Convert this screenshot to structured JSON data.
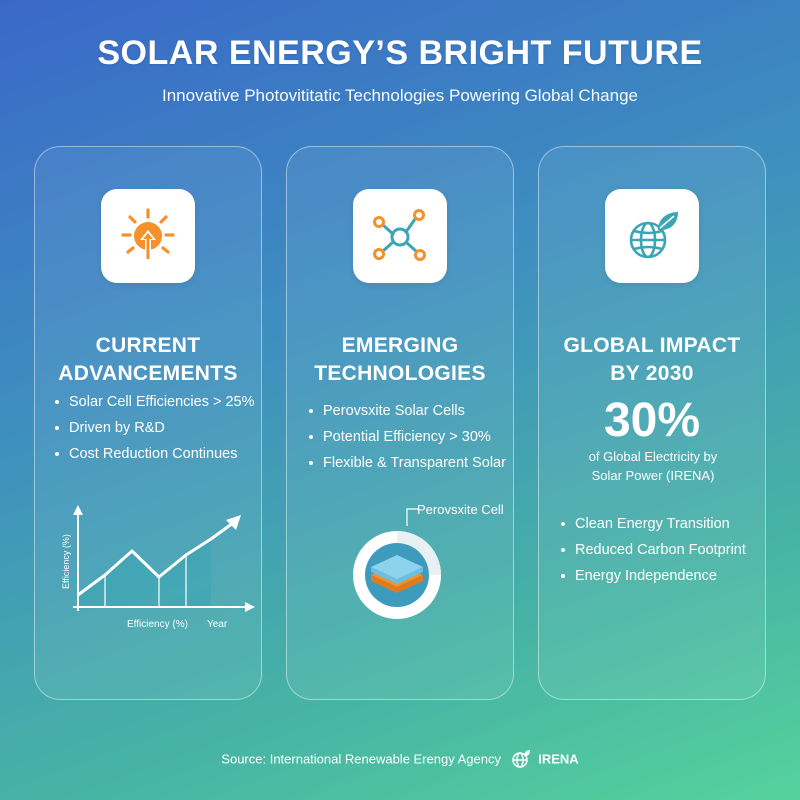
{
  "header": {
    "title": "SOLAR ENERGY’S BRIGHT FUTURE",
    "subtitle": "Innovative Photovititatic Technologies Powering Global Change"
  },
  "colors": {
    "accent_orange": "#f5902b",
    "accent_teal": "#3aa6b5",
    "background_start": "#3a68c9",
    "background_end": "#55d29c"
  },
  "cards": [
    {
      "icon": "sun-arrow-icon",
      "heading_line1": "CURRENT",
      "heading_line2": "ADVANCEMENTS",
      "bullets": [
        "Solar Cell Efficiencies > 25%",
        "Driven by R&D",
        "Cost Reduction Continues"
      ],
      "chart": {
        "y_label": "Efficiency (%)",
        "x_label": "Efficiency (%)",
        "x_end_label": "Year"
      }
    },
    {
      "icon": "network-nodes-icon",
      "heading_line1": "EMERGING",
      "heading_line2": "TECHNOLOGIES",
      "bullets": [
        "Perovsxite Solar Cells",
        "Potential Efficiency > 30%",
        "Flexible & Transparent Solar"
      ],
      "diagram_label": "Perovsxite Cell"
    },
    {
      "icon": "globe-leaf-icon",
      "heading_line1": "GLOBAL IMPACT",
      "heading_line2": "BY 2030",
      "stat_value": "30%",
      "stat_desc_line1": "of Global Electricity by",
      "stat_desc_line2": "Solar Power (IRENA)",
      "bullets": [
        "Clean Energy Transition",
        "Reduced Carbon Footprint",
        "Energy Independence"
      ]
    }
  ],
  "footer": {
    "source": "Source: International Renewable Erengy Agency",
    "logo_text": "IRENA"
  }
}
